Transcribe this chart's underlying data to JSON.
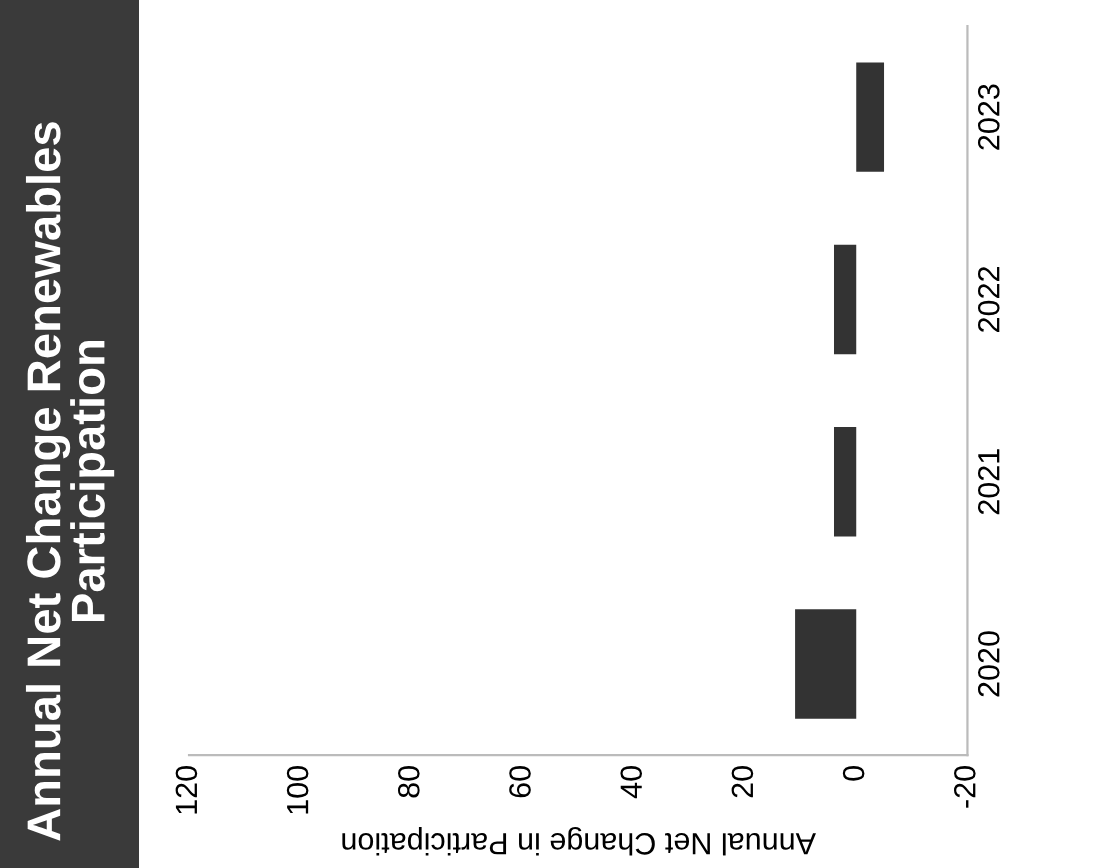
{
  "chart_data": {
    "type": "bar",
    "orientation": "horizontal",
    "title": "Annual Net Change Renewables Participation",
    "xlabel": "Annual Net Change in Participation",
    "categories": [
      "2023",
      "2022",
      "2021",
      "2020"
    ],
    "values": [
      -5,
      4,
      4,
      11
    ],
    "color": "#333333",
    "xlim": [
      120,
      -20
    ],
    "xticks": [
      120,
      100,
      80,
      60,
      40,
      20,
      0,
      -20
    ],
    "grid": false,
    "legend": false
  }
}
